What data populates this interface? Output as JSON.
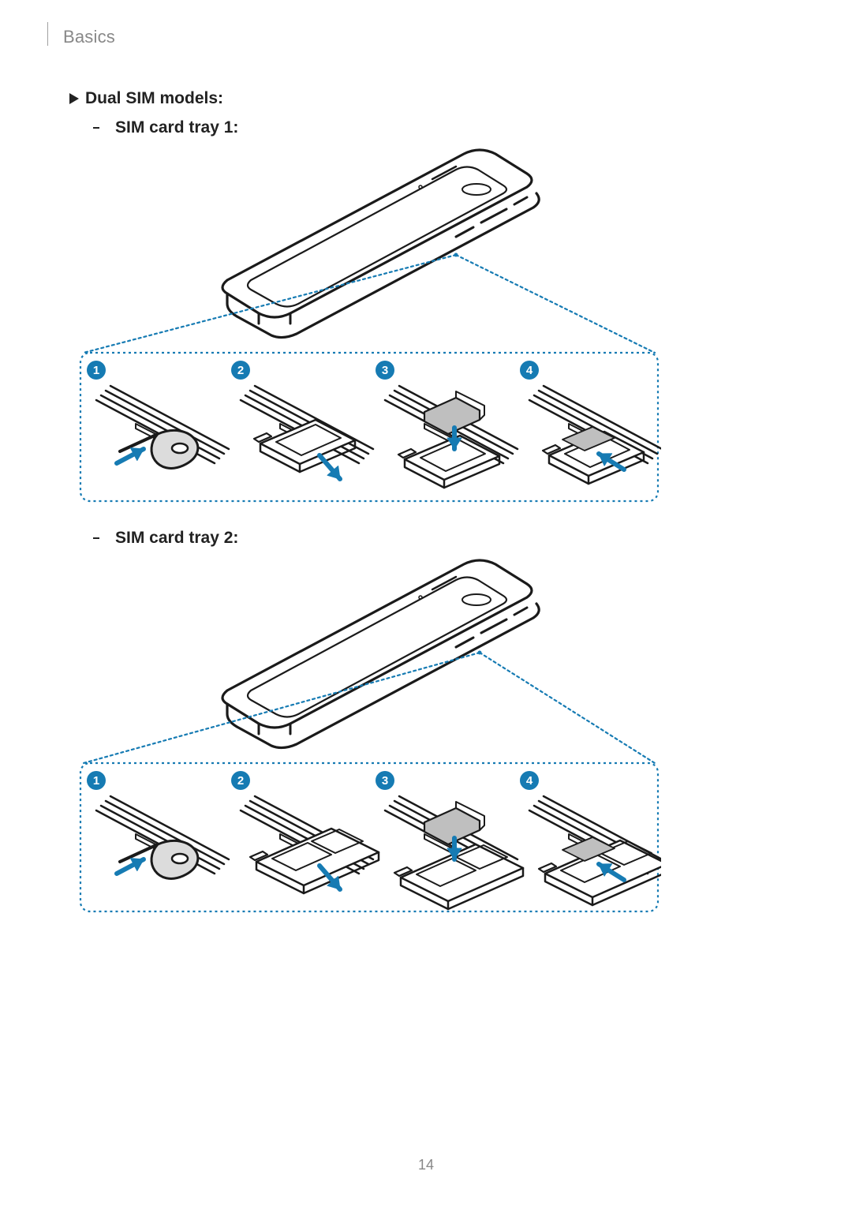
{
  "header": {
    "section": "Basics"
  },
  "page_number": "14",
  "bullet1": {
    "text": "Dual SIM models:"
  },
  "sub1": {
    "text": "SIM card tray 1:"
  },
  "sub2": {
    "text": "SIM card tray 2:"
  },
  "diagram": {
    "accent_color": "#167bb3",
    "callout_dash_color": "#167bb3",
    "dashed_box_color": "#167bb3",
    "arrow_color": "#167bb3",
    "line_color": "#1a1a1a",
    "tool_fill": "#dcdcdc",
    "card_fill": "#bfbfbf",
    "badges": [
      "1",
      "2",
      "3",
      "4"
    ]
  }
}
